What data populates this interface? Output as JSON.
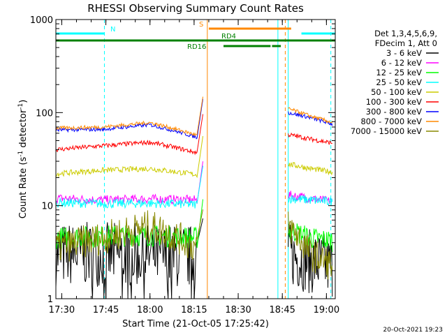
{
  "chart_data": {
    "type": "line",
    "title": "RHESSI Observing Summary Count Rates",
    "xlabel": "Start Time (21-Oct-05 17:25:42)",
    "ylabel_main": "Count Rate (s",
    "ylabel_sup1": "-1",
    "ylabel_mid": " detector",
    "ylabel_sup2": "-1",
    "ylabel_end": ")",
    "y_scale": "log",
    "ylim": [
      1,
      1000
    ],
    "xlim_minutes": [
      -2,
      93
    ],
    "x_ticks": [
      {
        "label": "17:30",
        "m": 0
      },
      {
        "label": "17:45",
        "m": 15
      },
      {
        "label": "18:00",
        "m": 30
      },
      {
        "label": "18:15",
        "m": 45
      },
      {
        "label": "18:30",
        "m": 60
      },
      {
        "label": "18:45",
        "m": 75
      },
      {
        "label": "19:00",
        "m": 90
      }
    ],
    "y_ticks": [
      {
        "label": "1",
        "v": 1
      },
      {
        "label": "10",
        "v": 10
      },
      {
        "label": "100",
        "v": 100
      },
      {
        "label": "1000",
        "v": 1000
      }
    ],
    "legend_header": [
      "Det 1,3,4,5,6,9,",
      "FDecim 1, Att 0"
    ],
    "legend_placement": "right",
    "timestamp": "20-Oct-2021 19:23",
    "series": [
      {
        "name": "3 - 6 keV",
        "color": "#000000",
        "pre": [
          3.0,
          3.0,
          2.9,
          2.8
        ],
        "post": [
          3.0,
          2.5,
          2.2
        ],
        "noise": 0.35
      },
      {
        "name": "6 - 12 keV",
        "color": "#ff00ff",
        "pre": [
          12.0,
          11.5,
          11.8,
          11.5
        ],
        "post": [
          13.0,
          12.0,
          11.0
        ],
        "noise": 0.05
      },
      {
        "name": "12 - 25 keV",
        "color": "#00ff00",
        "pre": [
          4.5,
          4.7,
          4.8,
          4.5
        ],
        "post": [
          5.5,
          4.5,
          4.2
        ],
        "noise": 0.12
      },
      {
        "name": "25 - 50 keV",
        "color": "#00ffff",
        "pre": [
          10.8,
          10.5,
          10.6,
          10.3
        ],
        "post": [
          12.0,
          11.5,
          11.0
        ],
        "noise": 0.05
      },
      {
        "name": "50 - 100 keV",
        "color": "#cccc00",
        "pre": [
          22.0,
          24.0,
          25.0,
          21.5
        ],
        "post": [
          28.0,
          25.0,
          23.0
        ],
        "noise": 0.03
      },
      {
        "name": "100 - 300 keV",
        "color": "#ff0000",
        "pre": [
          40.0,
          44.0,
          48.0,
          37.0
        ],
        "post": [
          58.0,
          52.0,
          47.0
        ],
        "noise": 0.025
      },
      {
        "name": "300 - 800 keV",
        "color": "#0000ff",
        "pre": [
          65.0,
          66.0,
          74.0,
          54.0
        ],
        "post": [
          100.0,
          88.0,
          75.0
        ],
        "noise": 0.02
      },
      {
        "name": "800 - 7000 keV",
        "color": "#ff8800",
        "pre": [
          68.0,
          70.0,
          78.0,
          57.0
        ],
        "post": [
          110.0,
          92.0,
          78.0
        ],
        "noise": 0.02
      },
      {
        "name": "7000 - 15000 keV",
        "color": "#888800",
        "pre": [
          3.5,
          4.5,
          6.0,
          3.5
        ],
        "post": [
          6.0,
          3.0,
          2.3
        ],
        "noise": 0.18
      }
    ],
    "pre_window_minutes": [
      -2,
      46
    ],
    "post_window_minutes": [
      77,
      92
    ],
    "flag_bars": [
      {
        "label": "N",
        "color": "#00ffff",
        "segments": [
          [
            -2,
            14.5
          ],
          [
            81.5,
            93
          ]
        ],
        "level": 1
      },
      {
        "label": "S",
        "color": "#ff8800",
        "segments": [
          [
            50,
            78
          ]
        ],
        "level": 0
      },
      {
        "label": "RD4",
        "color": "#008000",
        "segments": [
          [
            -2,
            93
          ]
        ],
        "level": 2
      },
      {
        "label": "RD16",
        "color": "#008000",
        "segments": [
          [
            55,
            71
          ],
          [
            71.5,
            74.5
          ]
        ],
        "level": 3
      }
    ],
    "vertical_lines": [
      {
        "m": -2,
        "color": "#00ffff",
        "style": "solid"
      },
      {
        "m": 14.5,
        "color": "#00ffff",
        "style": "dashed"
      },
      {
        "m": 49.5,
        "color": "#ff8800",
        "style": "solid"
      },
      {
        "m": 73.5,
        "color": "#00ffff",
        "style": "solid"
      },
      {
        "m": 76,
        "color": "#ff8800",
        "style": "dashed"
      },
      {
        "m": 77,
        "color": "#00ffff",
        "style": "solid"
      },
      {
        "m": 91.5,
        "color": "#00ffff",
        "style": "dashed"
      }
    ]
  }
}
